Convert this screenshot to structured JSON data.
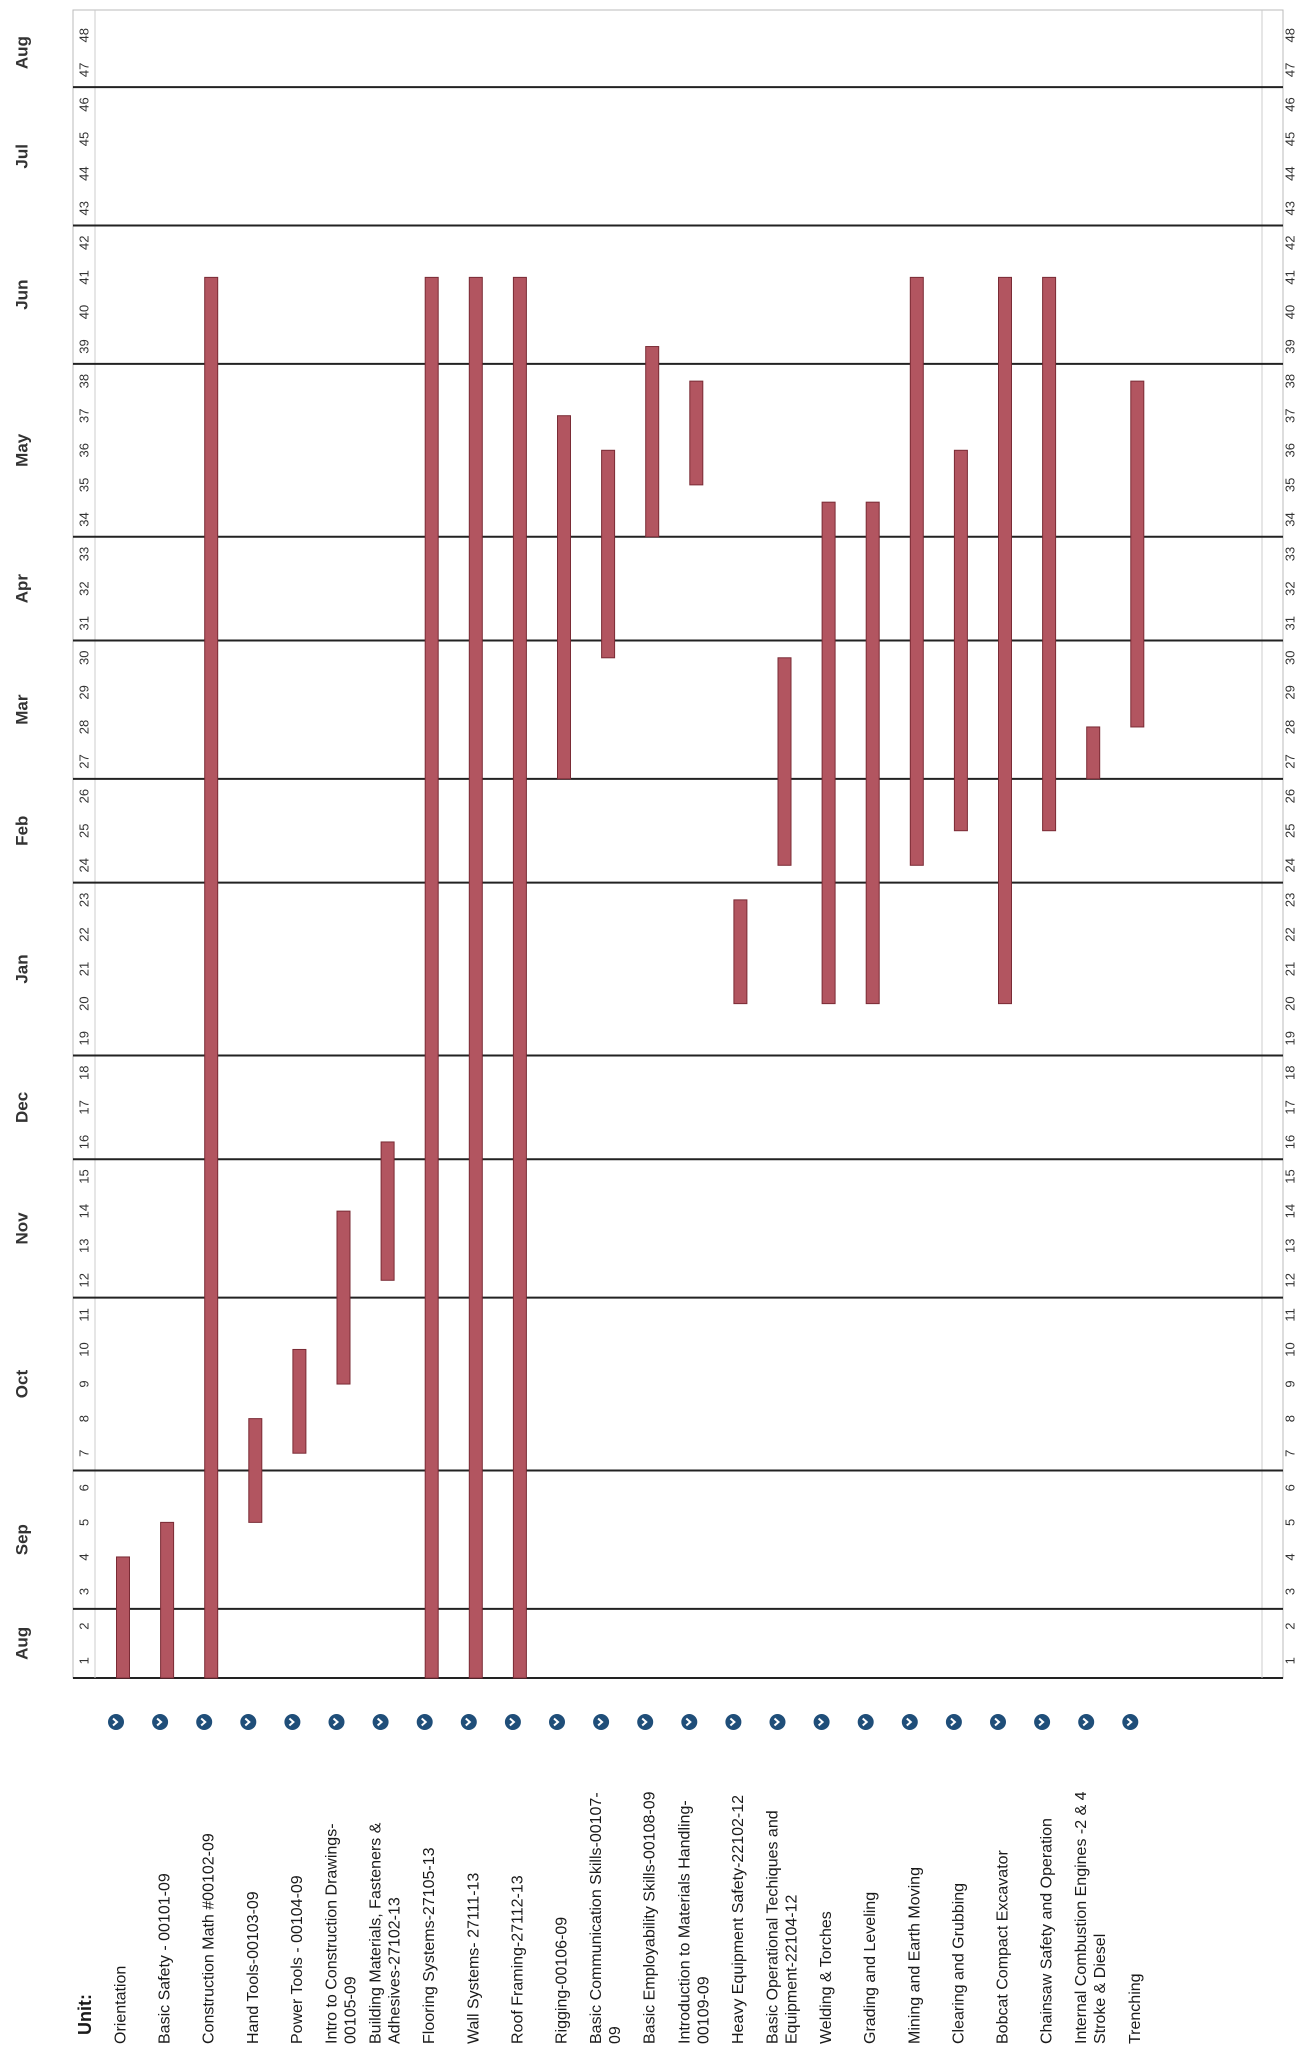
{
  "chart_data": {
    "type": "gantt",
    "orientation": "rotated",
    "header": "Unit:",
    "months": [
      {
        "label": "Aug",
        "from": 1,
        "to": 2
      },
      {
        "label": "Sep",
        "from": 3,
        "to": 6
      },
      {
        "label": "Oct",
        "from": 7,
        "to": 11
      },
      {
        "label": "Nov",
        "from": 12,
        "to": 15
      },
      {
        "label": "Dec",
        "from": 16,
        "to": 18
      },
      {
        "label": "Jan",
        "from": 19,
        "to": 23
      },
      {
        "label": "Feb",
        "from": 24,
        "to": 26
      },
      {
        "label": "Mar",
        "from": 27,
        "to": 30
      },
      {
        "label": "Apr",
        "from": 31,
        "to": 33
      },
      {
        "label": "May",
        "from": 34,
        "to": 38
      },
      {
        "label": "Jun",
        "from": 39,
        "to": 42
      },
      {
        "label": "Jul",
        "from": 43,
        "to": 46
      },
      {
        "label": "Aug",
        "from": 47,
        "to": 48
      }
    ],
    "weeks": [
      1,
      48
    ],
    "units": [
      {
        "lines": [
          "Orientation"
        ],
        "start": 1,
        "end": 3.5
      },
      {
        "lines": [
          "Basic Safety - 00101-09"
        ],
        "start": 1,
        "end": 4.5
      },
      {
        "lines": [
          "Construction Math #00102-09"
        ],
        "start": 1,
        "end": 40.5
      },
      {
        "lines": [
          "Hand Tools-00103-09"
        ],
        "start": 5.5,
        "end": 7.5
      },
      {
        "lines": [
          "Power Tools - 00104-09"
        ],
        "start": 7.5,
        "end": 9.5
      },
      {
        "lines": [
          "Intro to Construction Drawings-",
          "00105-09"
        ],
        "start": 9.5,
        "end": 13.5
      },
      {
        "lines": [
          "Building Materials, Fasteners &",
          "Adhesives-27102-13"
        ],
        "start": 12.5,
        "end": 15.5
      },
      {
        "lines": [
          "Flooring Systems-27105-13"
        ],
        "start": 1,
        "end": 40.5
      },
      {
        "lines": [
          "Wall Systems- 27111-13"
        ],
        "start": 1,
        "end": 40.5
      },
      {
        "lines": [
          "Roof Framing-27112-13"
        ],
        "start": 1,
        "end": 40.5
      },
      {
        "lines": [
          "Rigging-00106-09"
        ],
        "start": 27,
        "end": 36.5
      },
      {
        "lines": [
          "Basic Communication Skills-00107-",
          "09"
        ],
        "start": 30.5,
        "end": 35.5
      },
      {
        "lines": [
          "Basic Employability Skills-00108-09"
        ],
        "start": 34,
        "end": 38.5
      },
      {
        "lines": [
          "Introduction to Materials Handling-",
          "00109-09"
        ],
        "start": 35.5,
        "end": 37.5
      },
      {
        "lines": [
          "Heavy Equipment Safety-22102-12"
        ],
        "start": 20.5,
        "end": 22.5
      },
      {
        "lines": [
          "Basic Operational Techiques and",
          "Equipment-22104-12"
        ],
        "start": 24.5,
        "end": 29.5
      },
      {
        "lines": [
          "Welding & Torches"
        ],
        "start": 20.5,
        "end": 34
      },
      {
        "lines": [
          "Grading and Leveling"
        ],
        "start": 20.5,
        "end": 34
      },
      {
        "lines": [
          "Mining and Earth Moving"
        ],
        "start": 24.5,
        "end": 40.5
      },
      {
        "lines": [
          "Clearing and Grubbing"
        ],
        "start": 25.5,
        "end": 35.5
      },
      {
        "lines": [
          "Bobcat Compact Excavator"
        ],
        "start": 20.5,
        "end": 40.5
      },
      {
        "lines": [
          "Chainsaw Safety and Operation"
        ],
        "start": 25.5,
        "end": 40.5
      },
      {
        "lines": [
          "Internal Combustion Engines -2 & 4",
          "Stroke & Diesel"
        ],
        "start": 27,
        "end": 27.5
      },
      {
        "lines": [
          "Trenching"
        ],
        "start": 28.5,
        "end": 37.5
      }
    ],
    "colors": {
      "bar": "#b25560",
      "bar_edge": "#7a2b35",
      "icon": "#1f4e79",
      "grid": "#222222"
    }
  }
}
